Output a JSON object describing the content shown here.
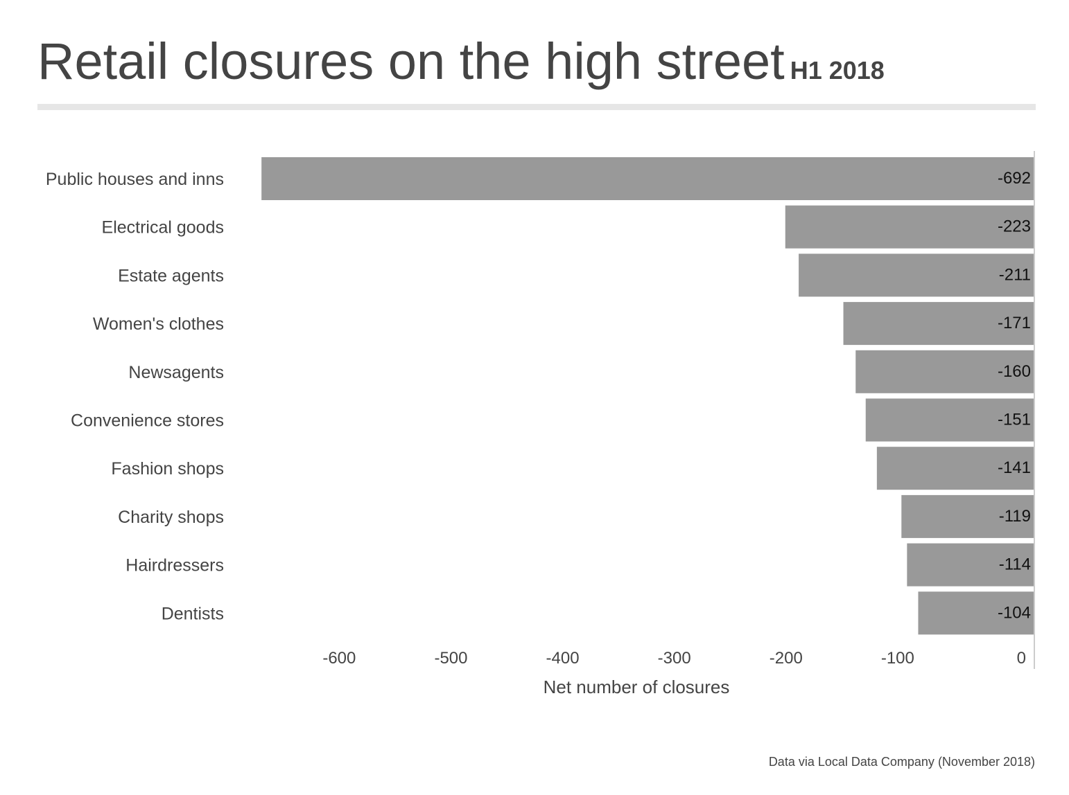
{
  "title": "Retail closures on the high street",
  "subtitle": "H1 2018",
  "source": "Data via Local Data Company (November 2018)",
  "chart_data": {
    "type": "bar",
    "orientation": "horizontal",
    "title": "Retail closures on the high street",
    "subtitle": "H1 2018",
    "categories": [
      "Public houses and inns",
      "Electrical goods",
      "Estate agents",
      "Women's clothes",
      "Newsagents",
      "Convenience stores",
      "Fashion shops",
      "Charity shops",
      "Hairdressers",
      "Dentists"
    ],
    "values": [
      -692,
      -223,
      -211,
      -171,
      -160,
      -151,
      -141,
      -119,
      -114,
      -104
    ],
    "value_labels": [
      "-692",
      "-223",
      "-211",
      "-171",
      "-160",
      "-151",
      "-141",
      "-119",
      "-114",
      "-104"
    ],
    "xlabel": "Net number of closures",
    "ylabel": "",
    "xlim": [
      -692,
      0
    ],
    "xticks": [
      -600,
      -500,
      -400,
      -300,
      -200,
      -100,
      0
    ],
    "xtick_labels": [
      "-600",
      "-500",
      "-400",
      "-300",
      "-200",
      "-100",
      "0"
    ],
    "bar_color": "#999999",
    "grid": false
  }
}
